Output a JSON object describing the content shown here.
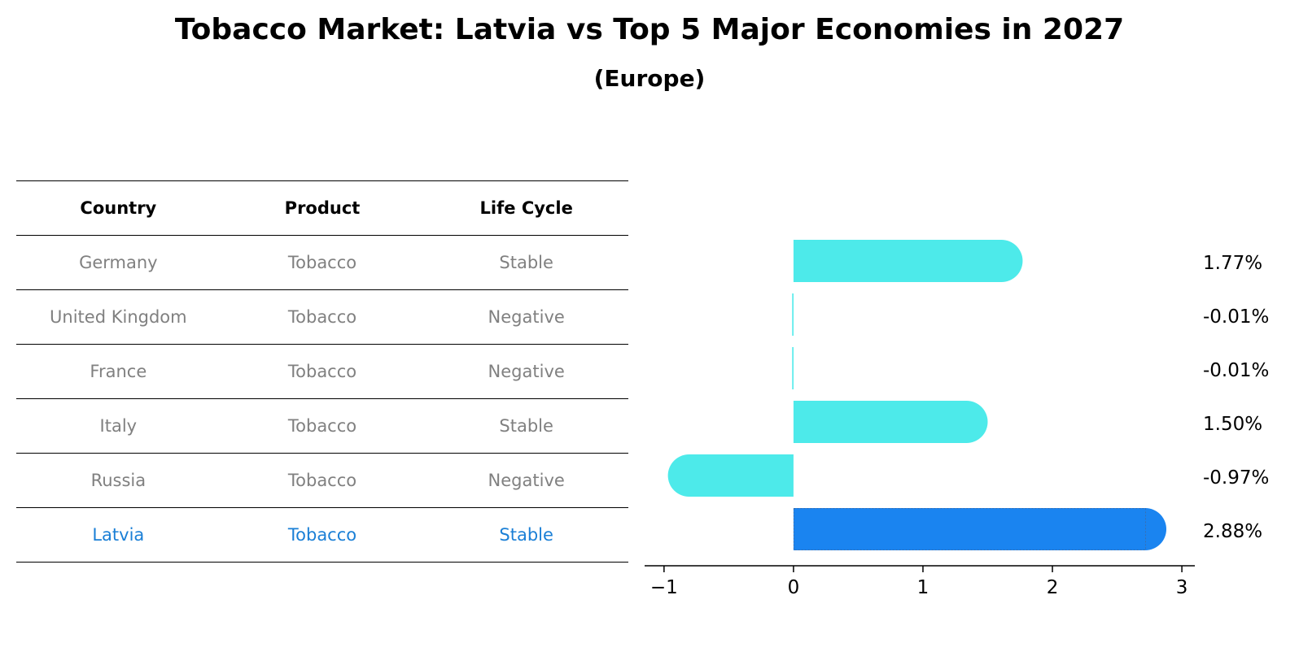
{
  "title": "Tobacco Market: Latvia vs Top 5 Major Economies in 2027",
  "subtitle": "(Europe)",
  "table": {
    "headers": [
      "Country",
      "Product",
      "Life Cycle"
    ],
    "rows": [
      [
        "Germany",
        "Tobacco",
        "Stable"
      ],
      [
        "United Kingdom",
        "Tobacco",
        "Negative"
      ],
      [
        "France",
        "Tobacco",
        "Negative"
      ],
      [
        "Italy",
        "Tobacco",
        "Stable"
      ],
      [
        "Russia",
        "Tobacco",
        "Negative"
      ],
      [
        "Latvia",
        "Tobacco",
        "Stable"
      ]
    ],
    "highlight_color": "#1a7fd6"
  },
  "chart_data": {
    "type": "bar",
    "orientation": "horizontal",
    "categories": [
      "Germany",
      "United Kingdom",
      "France",
      "Italy",
      "Russia",
      "Latvia"
    ],
    "values": [
      1.77,
      -0.01,
      -0.01,
      1.5,
      -0.97,
      2.88
    ],
    "value_labels": [
      "1.77%",
      "-0.01%",
      "-0.01%",
      "1.50%",
      "-0.97%",
      "2.88%"
    ],
    "xlim": [
      -1.15,
      3.1
    ],
    "xticks": [
      -1,
      0,
      1,
      2,
      3
    ],
    "xtick_labels": [
      "−1",
      "0",
      "1",
      "2",
      "3"
    ],
    "colors": [
      "#4deaea",
      "#4deaea",
      "#4deaea",
      "#4deaea",
      "#4deaea",
      "#1a84f0"
    ],
    "grid": false,
    "legend": "none"
  }
}
